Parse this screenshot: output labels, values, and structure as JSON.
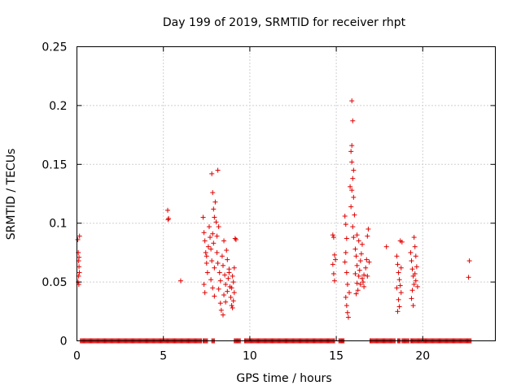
{
  "chart_data": {
    "type": "scatter",
    "title": "Day 199 of 2019, SRMTID for receiver rhpt",
    "xlabel": "GPS time / hours",
    "ylabel": "SRMTID / TECUs",
    "xlim": [
      0,
      24.2
    ],
    "ylim": [
      0,
      0.25
    ],
    "xticks": [
      0,
      5,
      10,
      15,
      20
    ],
    "yticks": [
      0,
      0.05,
      0.1,
      0.15,
      0.2,
      0.25
    ],
    "xtick_labels": [
      "0",
      "5",
      "10",
      "15",
      "20"
    ],
    "ytick_labels": [
      "0",
      "0.05",
      "0.1",
      "0.15",
      "0.2",
      "0.25"
    ],
    "grid": true,
    "marker": "+",
    "color": "#e00000",
    "series": [
      {
        "name": "SRMTID",
        "points": [
          [
            0.05,
            0.086
          ],
          [
            0.08,
            0.075
          ],
          [
            0.1,
            0.068
          ],
          [
            0.12,
            0.063
          ],
          [
            0.1,
            0.055
          ],
          [
            0.07,
            0.05
          ],
          [
            0.11,
            0.048
          ],
          [
            0.14,
            0.058
          ],
          [
            0.15,
            0.089
          ],
          [
            0.12,
            0.071
          ],
          [
            5.25,
            0.111
          ],
          [
            5.3,
            0.104
          ],
          [
            5.27,
            0.103
          ],
          [
            6.0,
            0.051
          ],
          [
            7.3,
            0.105
          ],
          [
            7.35,
            0.092
          ],
          [
            7.4,
            0.085
          ],
          [
            7.45,
            0.075
          ],
          [
            7.5,
            0.066
          ],
          [
            7.55,
            0.058
          ],
          [
            7.35,
            0.048
          ],
          [
            7.4,
            0.041
          ],
          [
            7.5,
            0.072
          ],
          [
            7.6,
            0.08
          ],
          [
            7.65,
            0.097
          ],
          [
            7.7,
            0.088
          ],
          [
            7.75,
            0.078
          ],
          [
            7.8,
            0.142
          ],
          [
            7.85,
            0.126
          ],
          [
            7.9,
            0.112
          ],
          [
            7.95,
            0.105
          ],
          [
            7.85,
            0.091
          ],
          [
            7.9,
            0.083
          ],
          [
            7.8,
            0.068
          ],
          [
            7.95,
            0.062
          ],
          [
            7.75,
            0.052
          ],
          [
            7.85,
            0.045
          ],
          [
            7.95,
            0.038
          ],
          [
            8.0,
            0.118
          ],
          [
            8.05,
            0.101
          ],
          [
            8.1,
            0.089
          ],
          [
            8.15,
            0.145
          ],
          [
            8.2,
            0.097
          ],
          [
            8.1,
            0.075
          ],
          [
            8.15,
            0.066
          ],
          [
            8.25,
            0.058
          ],
          [
            8.3,
            0.051
          ],
          [
            8.2,
            0.044
          ],
          [
            8.3,
            0.032
          ],
          [
            8.35,
            0.026
          ],
          [
            8.4,
            0.072
          ],
          [
            8.45,
            0.064
          ],
          [
            8.5,
            0.085
          ],
          [
            8.55,
            0.056
          ],
          [
            8.6,
            0.048
          ],
          [
            8.5,
            0.039
          ],
          [
            8.45,
            0.022
          ],
          [
            8.6,
            0.033
          ],
          [
            8.7,
            0.042
          ],
          [
            8.75,
            0.053
          ],
          [
            8.8,
            0.061
          ],
          [
            8.65,
            0.077
          ],
          [
            8.7,
            0.069
          ],
          [
            8.85,
            0.046
          ],
          [
            8.9,
            0.037
          ],
          [
            8.95,
            0.03
          ],
          [
            9.0,
            0.028
          ],
          [
            9.05,
            0.034
          ],
          [
            9.1,
            0.041
          ],
          [
            9.0,
            0.055
          ],
          [
            9.1,
            0.062
          ],
          [
            9.15,
            0.087
          ],
          [
            9.2,
            0.086
          ],
          [
            9.05,
            0.05
          ],
          [
            8.95,
            0.045
          ],
          [
            8.8,
            0.058
          ],
          [
            14.8,
            0.09
          ],
          [
            14.85,
            0.088
          ],
          [
            14.9,
            0.073
          ],
          [
            14.8,
            0.065
          ],
          [
            14.85,
            0.057
          ],
          [
            14.9,
            0.051
          ],
          [
            14.95,
            0.069
          ],
          [
            15.5,
            0.106
          ],
          [
            15.55,
            0.099
          ],
          [
            15.6,
            0.087
          ],
          [
            15.55,
            0.075
          ],
          [
            15.5,
            0.067
          ],
          [
            15.6,
            0.058
          ],
          [
            15.65,
            0.048
          ],
          [
            15.55,
            0.037
          ],
          [
            15.6,
            0.03
          ],
          [
            15.65,
            0.024
          ],
          [
            15.7,
            0.02
          ],
          [
            15.75,
            0.041
          ],
          [
            15.8,
            0.131
          ],
          [
            15.85,
            0.114
          ],
          [
            15.9,
            0.204
          ],
          [
            15.95,
            0.187
          ],
          [
            15.9,
            0.166
          ],
          [
            15.85,
            0.161
          ],
          [
            15.9,
            0.152
          ],
          [
            16.0,
            0.145
          ],
          [
            15.95,
            0.138
          ],
          [
            15.9,
            0.128
          ],
          [
            16.0,
            0.122
          ],
          [
            16.05,
            0.107
          ],
          [
            15.95,
            0.097
          ],
          [
            16.0,
            0.088
          ],
          [
            16.1,
            0.078
          ],
          [
            16.15,
            0.072
          ],
          [
            16.2,
            0.064
          ],
          [
            16.1,
            0.057
          ],
          [
            16.2,
            0.049
          ],
          [
            16.25,
            0.043
          ],
          [
            16.3,
            0.055
          ],
          [
            16.35,
            0.06
          ],
          [
            16.4,
            0.068
          ],
          [
            16.45,
            0.074
          ],
          [
            16.5,
            0.082
          ],
          [
            16.55,
            0.05
          ],
          [
            16.6,
            0.056
          ],
          [
            16.7,
            0.062
          ],
          [
            16.75,
            0.069
          ],
          [
            16.8,
            0.089
          ],
          [
            16.85,
            0.095
          ],
          [
            16.6,
            0.046
          ],
          [
            16.5,
            0.053
          ],
          [
            16.4,
            0.048
          ],
          [
            16.3,
            0.085
          ],
          [
            16.2,
            0.09
          ],
          [
            16.8,
            0.055
          ],
          [
            16.9,
            0.067
          ],
          [
            16.15,
            0.04
          ],
          [
            17.9,
            0.08
          ],
          [
            18.5,
            0.072
          ],
          [
            18.55,
            0.065
          ],
          [
            18.6,
            0.058
          ],
          [
            18.65,
            0.052
          ],
          [
            18.7,
            0.047
          ],
          [
            18.75,
            0.041
          ],
          [
            18.6,
            0.035
          ],
          [
            18.65,
            0.029
          ],
          [
            18.55,
            0.025
          ],
          [
            18.7,
            0.085
          ],
          [
            18.8,
            0.084
          ],
          [
            18.75,
            0.062
          ],
          [
            18.5,
            0.045
          ],
          [
            19.3,
            0.075
          ],
          [
            19.35,
            0.068
          ],
          [
            19.4,
            0.061
          ],
          [
            19.45,
            0.055
          ],
          [
            19.5,
            0.048
          ],
          [
            19.4,
            0.043
          ],
          [
            19.35,
            0.036
          ],
          [
            19.45,
            0.03
          ],
          [
            19.5,
            0.088
          ],
          [
            19.55,
            0.08
          ],
          [
            19.6,
            0.072
          ],
          [
            19.65,
            0.063
          ],
          [
            19.55,
            0.057
          ],
          [
            19.6,
            0.051
          ],
          [
            19.7,
            0.046
          ],
          [
            22.7,
            0.068
          ],
          [
            22.65,
            0.054
          ]
        ]
      }
    ],
    "zero_segments": [
      [
        0.2,
        7.2
      ],
      [
        7.3,
        7.55
      ],
      [
        7.8,
        7.95
      ],
      [
        9.1,
        9.45
      ],
      [
        9.7,
        14.9
      ],
      [
        15.15,
        15.45
      ],
      [
        16.95,
        18.4
      ],
      [
        18.55,
        18.7
      ],
      [
        18.8,
        19.2
      ],
      [
        19.3,
        22.8
      ]
    ]
  }
}
